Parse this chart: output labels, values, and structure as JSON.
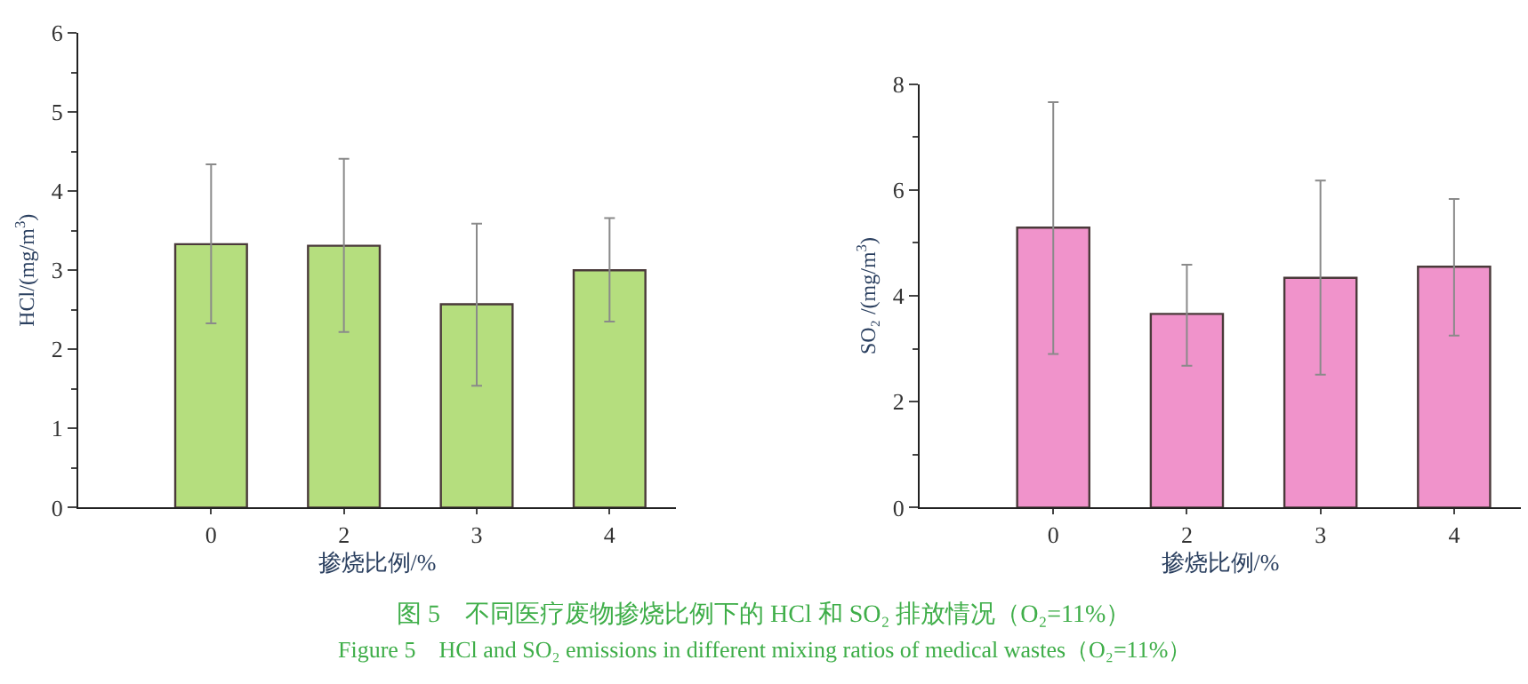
{
  "chart_data": [
    {
      "type": "bar",
      "categories": [
        "0",
        "2",
        "3",
        "4"
      ],
      "xlabel": "掺烧比例/%",
      "ylabel": "HCl/(mg/m$^{3}$)",
      "series": [
        {
          "color": "#b5de7e",
          "values": [
            3.33,
            3.31,
            2.57,
            3.0
          ],
          "errors": [
            [
              2.33,
              4.34
            ],
            [
              2.22,
              4.41
            ],
            [
              1.54,
              3.59
            ],
            [
              2.35,
              3.66
            ]
          ]
        }
      ],
      "ylim": [
        0,
        6
      ],
      "yticks": [
        0,
        1,
        2,
        3,
        4,
        5,
        6
      ],
      "annotations": [
        "图 5　不同医疗废物掺烧比例下的 HCl 和 SO₂ 排放情况（O₂=11%）",
        "Figure 5　HCl and SO₂ emissions in different mixing ratios of medical wastes（O₂=11%）"
      ]
    },
    {
      "type": "bar",
      "categories": [
        "0",
        "2",
        "3",
        "4"
      ],
      "xlabel": "掺烧比例/%",
      "ylabel": "SO₂ /(mg/m$^{3}$)",
      "series": [
        {
          "color": "#f093cb",
          "values": [
            5.29,
            3.66,
            4.34,
            4.55
          ],
          "errors": [
            [
              2.9,
              7.66
            ],
            [
              2.68,
              4.59
            ],
            [
              2.51,
              6.18
            ],
            [
              3.25,
              5.83
            ]
          ]
        }
      ],
      "ylim": [
        0,
        8
      ],
      "yticks": [
        0,
        2,
        4,
        6,
        8
      ]
    }
  ]
}
